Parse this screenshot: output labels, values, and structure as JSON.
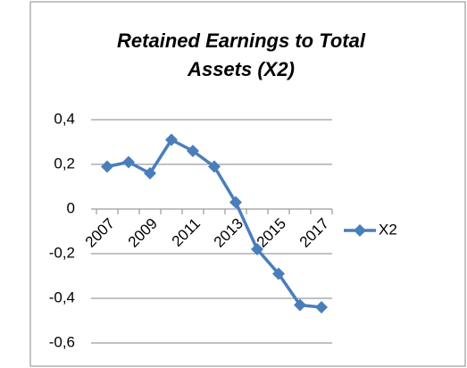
{
  "chart_data": {
    "type": "line",
    "title": "Retained Earnings to Total Assets (X2)",
    "categories": [
      "2007",
      null,
      "2009",
      null,
      "2011",
      null,
      "2013",
      null,
      "2015",
      null,
      "2017"
    ],
    "series": [
      {
        "name": "X2",
        "color": "#4a7ebb",
        "values": [
          0.19,
          0.21,
          0.16,
          0.31,
          0.26,
          0.19,
          0.03,
          -0.18,
          -0.29,
          -0.43,
          -0.44
        ]
      }
    ],
    "ylim": [
      -0.6,
      0.4
    ],
    "yticks": [
      {
        "value": -0.6,
        "label": "-0,6"
      },
      {
        "value": -0.4,
        "label": "-0,4"
      },
      {
        "value": -0.2,
        "label": "-0,2"
      },
      0,
      {
        "value": 0.2,
        "label": "0,2"
      },
      {
        "value": 0.4,
        "label": "0,4"
      }
    ],
    "grid": true,
    "legend": "right"
  }
}
